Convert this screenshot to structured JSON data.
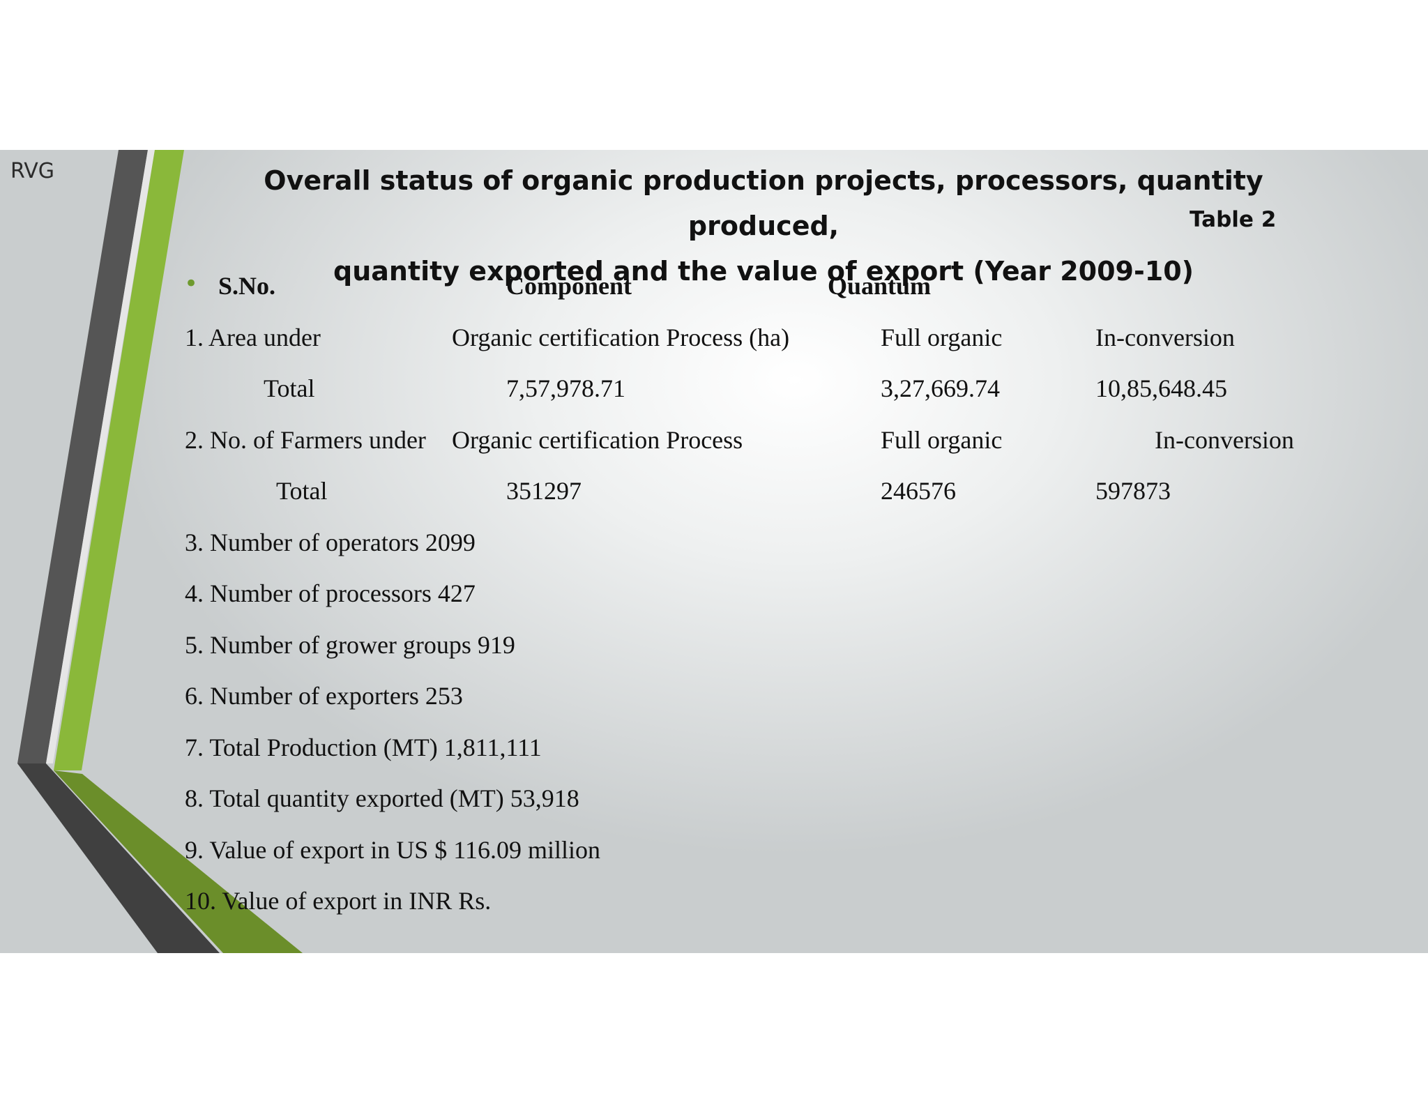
{
  "slide": {
    "author": "RVG",
    "title_line1": "Overall status of organic production projects, processors, quantity produced,",
    "title_line2": "quantity exported and the value of export (Year 2009-10)",
    "table_tag": "Table 2",
    "accent_colors": {
      "green": "#8ab83a",
      "dark_green": "#6b8e2a",
      "dark_gray": "#4a4a4a"
    }
  },
  "header": {
    "sno": "S.No.",
    "component": "Component",
    "quantum": "Quantum"
  },
  "rows": [
    {
      "c1": "1. Area under",
      "c2": "Organic certification Process (ha)",
      "c3": "Full organic",
      "c4": "In-conversion"
    },
    {
      "c1": "Total",
      "c2": "7,57,978.71",
      "c3": "3,27,669.74",
      "c4": "10,85,648.45"
    },
    {
      "c1": "2. No. of Farmers under",
      "c2": "Organic certification Process",
      "c3": "Full organic",
      "c4": "In-conversion"
    },
    {
      "c1": "Total",
      "c2": "351297",
      "c3": "246576",
      "c4": "597873"
    }
  ],
  "items": [
    "3. Number of operators 2099",
    "4. Number of processors 427",
    "5. Number of grower groups 919",
    "6. Number of exporters 253",
    "7. Total Production (MT) 1,811,111",
    "8. Total quantity exported (MT) 53,918",
    "9. Value of export in US $ 116.09 million",
    "10. Value of export in INR Rs."
  ]
}
